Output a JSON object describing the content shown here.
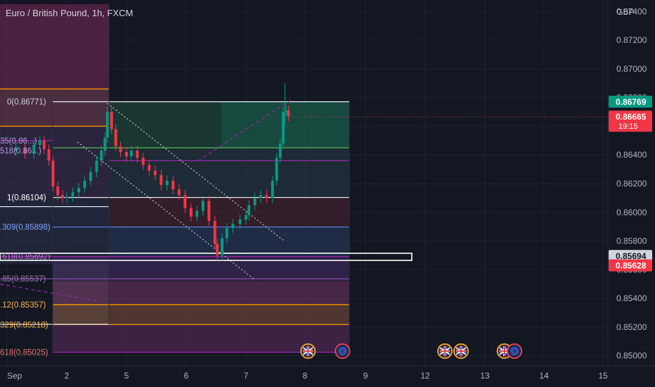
{
  "header": {
    "title": "Euro / British Pound, 1h, FXCM",
    "currency": "GBP"
  },
  "chart_data": {
    "type": "candlestick",
    "symbol": "Euro / British Pound",
    "interval": "1h",
    "source": "FXCM",
    "currency": "GBP",
    "ylim": [
      0.8493,
      0.8748
    ],
    "yticks": [
      0.874,
      0.872,
      0.87,
      0.868,
      0.866,
      0.864,
      0.862,
      0.86,
      0.858,
      0.856,
      0.854,
      0.852,
      0.85
    ],
    "ytick_labels": [
      "0.87400",
      "0.87200",
      "0.87000",
      "0.86800",
      "0.86600",
      "0.86400",
      "0.86200",
      "0.86000",
      "0.85800",
      "0.85600",
      "0.85400",
      "0.85200",
      "0.85000"
    ],
    "xlim": [
      0.9,
      15.1
    ],
    "xticks": [
      {
        "x": 1,
        "label": "Sep"
      },
      {
        "x": 2,
        "label": "2"
      },
      {
        "x": 3,
        "label": "5"
      },
      {
        "x": 4,
        "label": "6"
      },
      {
        "x": 5,
        "label": "7"
      },
      {
        "x": 6,
        "label": "8"
      },
      {
        "x": 7,
        "label": "9"
      },
      {
        "x": 8,
        "label": "12"
      },
      {
        "x": 9,
        "label": "13"
      },
      {
        "x": 10,
        "label": "14"
      },
      {
        "x": 11,
        "label": "15"
      }
    ],
    "close_series": [
      [
        1.0,
        0.8643
      ],
      [
        1.15,
        0.8645
      ],
      [
        1.3,
        0.8641
      ],
      [
        1.45,
        0.8647
      ],
      [
        1.55,
        0.865
      ],
      [
        1.62,
        0.8644
      ],
      [
        1.7,
        0.8636
      ],
      [
        1.77,
        0.8618
      ],
      [
        1.85,
        0.8612
      ],
      [
        1.93,
        0.861
      ],
      [
        2.0,
        0.8611
      ],
      [
        2.1,
        0.8614
      ],
      [
        2.2,
        0.8617
      ],
      [
        2.3,
        0.8622
      ],
      [
        2.4,
        0.8628
      ],
      [
        2.5,
        0.8636
      ],
      [
        2.58,
        0.8643
      ],
      [
        2.64,
        0.8652
      ],
      [
        2.68,
        0.867
      ],
      [
        2.75,
        0.8658
      ],
      [
        2.82,
        0.8646
      ],
      [
        2.9,
        0.8642
      ],
      [
        3.0,
        0.8639
      ],
      [
        3.08,
        0.8643
      ],
      [
        3.18,
        0.8638
      ],
      [
        3.28,
        0.8633
      ],
      [
        3.38,
        0.8629
      ],
      [
        3.48,
        0.8626
      ],
      [
        3.58,
        0.8619
      ],
      [
        3.68,
        0.8622
      ],
      [
        3.78,
        0.8616
      ],
      [
        3.88,
        0.8612
      ],
      [
        3.98,
        0.8603
      ],
      [
        4.08,
        0.8597
      ],
      [
        4.18,
        0.8601
      ],
      [
        4.28,
        0.8608
      ],
      [
        4.38,
        0.8594
      ],
      [
        4.48,
        0.8578
      ],
      [
        4.52,
        0.857
      ],
      [
        4.6,
        0.8582
      ],
      [
        4.68,
        0.8589
      ],
      [
        4.78,
        0.8592
      ],
      [
        4.9,
        0.8595
      ],
      [
        5.0,
        0.8598
      ],
      [
        5.05,
        0.8605
      ],
      [
        5.15,
        0.861
      ],
      [
        5.25,
        0.8612
      ],
      [
        5.35,
        0.861
      ],
      [
        5.45,
        0.8622
      ],
      [
        5.52,
        0.8638
      ],
      [
        5.58,
        0.8648
      ],
      [
        5.63,
        0.867
      ],
      [
        5.68,
        0.8671
      ],
      [
        5.72,
        0.8667
      ]
    ],
    "horizontal_levels": [
      {
        "label": "0(0.86771)",
        "value": 0.86771
      },
      {
        "label": "1(0.86104)",
        "value": 0.86104
      },
      {
        "label": ".309(0.85898)",
        "value": 0.85898
      },
      {
        "label": ".618(0.85692)",
        "value": 0.85692
      },
      {
        "label": ".85(0.85537)",
        "value": 0.85537
      },
      {
        "label": ".12(0.85357)",
        "value": 0.85357
      },
      {
        "label": "329(0.85218)",
        "value": 0.85218
      },
      {
        "label": "618(0.85025)",
        "value": 0.85025
      }
    ],
    "left_partial_labels": [
      {
        "label": "35(0.86...)",
        "value": 0.865
      },
      {
        "label": "518(0.86...)",
        "value": 0.8643
      }
    ],
    "price_badges": [
      {
        "label": "0.86769",
        "value": 0.86769,
        "color": "#089981",
        "text_color": "#ffffff"
      },
      {
        "label": "0.86665",
        "value": 0.86665,
        "color": "#f23645",
        "text_color": "#ffffff",
        "sub": "19:15"
      },
      {
        "label": "0.85694",
        "value": 0.85694,
        "color": "#d1d4dc",
        "text_color": "#131722"
      },
      {
        "label": "0.85628",
        "value": 0.85628,
        "color": "#f23645",
        "text_color": "#ffffff"
      }
    ],
    "event_flags": [
      {
        "x": 6.05,
        "country": "uk-flag-icon"
      },
      {
        "x": 6.62,
        "country": "eu-flag-icon"
      },
      {
        "x": 8.33,
        "country": "uk-flag-icon"
      },
      {
        "x": 8.6,
        "country": "uk-flag-icon"
      },
      {
        "x": 9.33,
        "country": "uk-flag-icon"
      },
      {
        "x": 9.5,
        "country": "eu-flag-icon"
      }
    ],
    "colors": {
      "up": "#089981",
      "down": "#f23645",
      "background": "#131722",
      "grid": "#1f2330",
      "accent_purple": "#9c27b0",
      "accent_orange": "#ff9800"
    }
  }
}
